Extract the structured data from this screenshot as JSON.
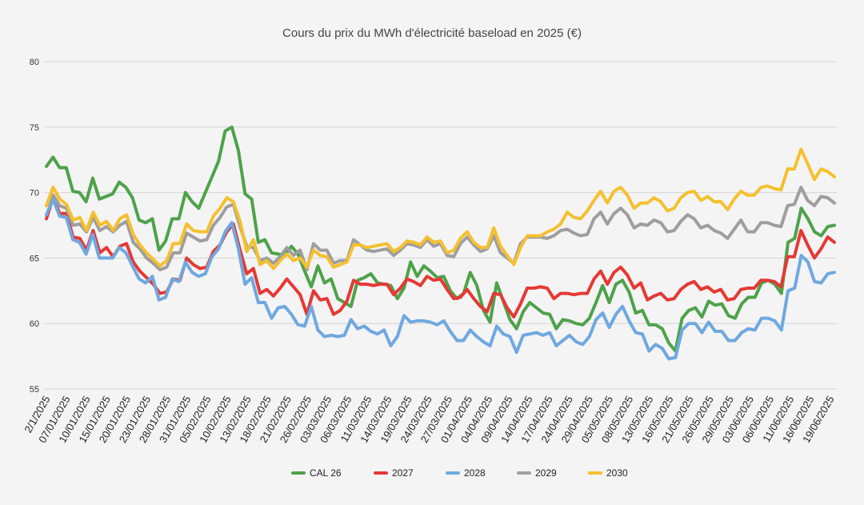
{
  "chart_data": {
    "type": "line",
    "title": "Cours du prix du MWh d'électricité baseload en 2025 (€)",
    "xlabel": "",
    "ylabel": "",
    "ylim": [
      55,
      80
    ],
    "yticks": [
      55,
      60,
      65,
      70,
      75,
      80
    ],
    "grid": true,
    "legend_position": "bottom",
    "x_tick_labels": [
      "2/1/2025",
      "07/01/2025",
      "10/01/2025",
      "15/01/2025",
      "20/01/2025",
      "23/01/2025",
      "28/01/2025",
      "31/01/2025",
      "05/02/2025",
      "10/02/2025",
      "13/02/2025",
      "18/02/2025",
      "21/02/2025",
      "26/02/2025",
      "03/03/2025",
      "06/03/2025",
      "11/03/2025",
      "14/03/2025",
      "19/03/2025",
      "24/03/2025",
      "27/03/2025",
      "01/04/2025",
      "04/04/2025",
      "09/04/2025",
      "14/04/2025",
      "17/04/2025",
      "24/04/2025",
      "29/04/2025",
      "05/05/2025",
      "08/05/2025",
      "13/05/2025",
      "16/05/2025",
      "21/05/2025",
      "26/05/2025",
      "29/05/2025",
      "03/06/2025",
      "06/06/2025",
      "11/06/2025",
      "16/06/2025",
      "19/06/2025"
    ],
    "series": [
      {
        "name": "CAL 26",
        "color": "#4ea24a",
        "values": [
          72.0,
          72.7,
          71.9,
          71.9,
          70.1,
          70.0,
          69.3,
          71.1,
          69.5,
          69.7,
          69.9,
          70.8,
          70.4,
          69.6,
          67.9,
          67.7,
          68.0,
          65.6,
          66.3,
          68.0,
          68.0,
          70.0,
          69.3,
          68.8,
          70.0,
          71.2,
          72.4,
          74.7,
          75.0,
          73.2,
          69.9,
          69.5,
          66.2,
          66.4,
          65.4,
          65.3,
          65.2,
          65.9,
          65.3,
          64.0,
          62.8,
          64.4,
          63.1,
          63.4,
          61.9,
          61.6,
          61.3,
          63.3,
          63.5,
          63.8,
          63.1,
          63.0,
          62.9,
          61.9,
          62.7,
          64.7,
          63.6,
          64.4,
          64.0,
          63.5,
          63.6,
          62.5,
          61.9,
          62.3,
          63.9,
          62.9,
          61.0,
          60.1,
          63.1,
          61.7,
          60.3,
          59.6,
          60.9,
          61.6,
          61.2,
          60.8,
          60.7,
          59.6,
          60.3,
          60.2,
          60.0,
          59.9,
          60.4,
          61.6,
          62.9,
          61.6,
          63.0,
          63.3,
          62.4,
          60.8,
          61.0,
          59.9,
          59.9,
          59.6,
          58.5,
          57.9,
          60.4,
          61.0,
          61.2,
          60.5,
          61.7,
          61.4,
          61.5,
          60.6,
          60.4,
          61.5,
          62.0,
          62.0,
          63.1,
          63.3,
          63.0,
          62.3,
          66.2,
          66.5,
          68.8,
          68.0,
          67.0,
          66.7,
          67.4,
          67.5
        ]
      },
      {
        "name": "2027",
        "color": "#e53935",
        "values": [
          68.0,
          69.6,
          68.4,
          68.4,
          66.6,
          66.5,
          65.6,
          67.1,
          65.4,
          65.8,
          65.1,
          65.9,
          66.1,
          64.7,
          64.0,
          63.5,
          63.0,
          62.3,
          62.4,
          63.4,
          63.3,
          65.0,
          64.5,
          64.2,
          64.3,
          65.5,
          66.0,
          67.0,
          67.6,
          65.6,
          63.8,
          64.2,
          62.3,
          62.6,
          62.1,
          62.7,
          63.4,
          62.8,
          62.2,
          60.7,
          62.5,
          61.8,
          61.9,
          60.7,
          61.0,
          61.7,
          63.3,
          63.0,
          63.0,
          62.9,
          63.0,
          63.0,
          62.2,
          62.7,
          63.4,
          63.2,
          62.9,
          63.6,
          63.3,
          63.4,
          62.6,
          61.9,
          62.0,
          62.6,
          61.9,
          61.3,
          60.9,
          62.3,
          62.2,
          61.2,
          60.5,
          61.5,
          62.7,
          62.7,
          62.8,
          62.7,
          61.9,
          62.3,
          62.3,
          62.2,
          62.3,
          62.3,
          63.4,
          64.0,
          63.0,
          63.9,
          64.3,
          63.7,
          62.7,
          63.1,
          61.8,
          62.1,
          62.3,
          61.8,
          61.9,
          62.6,
          63.0,
          63.2,
          62.6,
          62.8,
          62.4,
          62.6,
          61.8,
          61.9,
          62.6,
          62.7,
          62.7,
          63.3,
          63.3,
          63.2,
          62.8,
          65.1,
          65.1,
          67.1,
          66.0,
          65.0,
          65.7,
          66.6,
          66.2
        ]
      },
      {
        "name": "2028",
        "color": "#6fa8e0",
        "values": [
          68.3,
          69.5,
          68.2,
          68.1,
          66.4,
          66.2,
          65.3,
          66.8,
          65.0,
          65.0,
          65.0,
          65.8,
          65.4,
          64.4,
          63.4,
          63.1,
          63.6,
          61.8,
          62.0,
          63.4,
          63.2,
          64.7,
          63.9,
          63.6,
          63.8,
          65.1,
          65.7,
          67.0,
          67.7,
          65.7,
          63.0,
          63.5,
          61.6,
          61.6,
          60.4,
          61.2,
          61.3,
          60.7,
          59.9,
          59.8,
          61.3,
          59.5,
          59.0,
          59.1,
          59.0,
          59.1,
          60.3,
          59.6,
          59.8,
          59.4,
          59.2,
          59.5,
          58.3,
          59.0,
          60.6,
          60.1,
          60.2,
          60.2,
          60.1,
          59.9,
          60.2,
          59.4,
          58.7,
          58.7,
          59.5,
          59.0,
          58.6,
          58.3,
          59.8,
          59.2,
          59.0,
          57.8,
          59.1,
          59.2,
          59.3,
          59.1,
          59.3,
          58.3,
          58.7,
          59.1,
          58.6,
          58.4,
          59.0,
          60.3,
          60.8,
          59.7,
          60.7,
          61.3,
          60.2,
          59.3,
          59.2,
          57.9,
          58.4,
          58.1,
          57.3,
          57.4,
          59.5,
          60.0,
          60.0,
          59.3,
          60.1,
          59.4,
          59.4,
          58.7,
          58.7,
          59.3,
          59.6,
          59.5,
          60.4,
          60.4,
          60.2,
          59.5,
          62.5,
          62.7,
          65.2,
          64.7,
          63.2,
          63.1,
          63.8,
          63.9
        ]
      },
      {
        "name": "2029",
        "color": "#9e9e9e",
        "values": [
          69.0,
          69.8,
          69.0,
          68.8,
          67.5,
          67.6,
          67.0,
          68.1,
          67.1,
          67.4,
          67.0,
          67.5,
          67.8,
          66.2,
          65.7,
          65.0,
          64.6,
          64.1,
          64.3,
          65.4,
          65.4,
          66.9,
          66.6,
          66.3,
          66.4,
          67.5,
          68.1,
          68.9,
          69.1,
          67.4,
          65.9,
          65.8,
          64.8,
          65.0,
          64.6,
          65.1,
          65.8,
          65.2,
          65.6,
          64.1,
          66.1,
          65.6,
          65.6,
          64.6,
          64.8,
          64.8,
          66.4,
          66.0,
          65.6,
          65.5,
          65.6,
          65.7,
          65.2,
          65.6,
          66.1,
          66.0,
          65.8,
          66.4,
          65.9,
          66.1,
          65.2,
          65.1,
          66.1,
          66.6,
          66.0,
          65.5,
          65.7,
          66.7,
          65.4,
          65.0,
          64.6,
          66.1,
          66.6,
          66.6,
          66.6,
          66.5,
          66.7,
          67.1,
          67.2,
          66.9,
          66.7,
          66.8,
          68.0,
          68.5,
          67.6,
          68.4,
          68.8,
          68.3,
          67.3,
          67.6,
          67.5,
          67.9,
          67.7,
          67.0,
          67.1,
          67.8,
          68.3,
          68.0,
          67.3,
          67.5,
          67.1,
          66.9,
          66.5,
          67.2,
          67.9,
          67.0,
          67.0,
          67.7,
          67.7,
          67.5,
          67.4,
          69.0,
          69.1,
          70.4,
          69.4,
          69.0,
          69.7,
          69.6,
          69.2
        ]
      },
      {
        "name": "2030",
        "color": "#f5c02f",
        "values": [
          69.0,
          70.4,
          69.5,
          69.1,
          67.9,
          68.1,
          67.1,
          68.5,
          67.5,
          67.8,
          67.1,
          68.0,
          68.3,
          66.8,
          66.0,
          65.4,
          64.9,
          64.4,
          64.8,
          66.1,
          66.1,
          67.6,
          67.1,
          67.0,
          67.0,
          68.2,
          68.8,
          69.6,
          69.3,
          67.8,
          65.5,
          66.4,
          64.5,
          64.8,
          64.2,
          64.8,
          65.3,
          64.8,
          65.0,
          64.3,
          65.6,
          65.2,
          65.1,
          64.3,
          64.5,
          64.7,
          66.0,
          66.0,
          65.8,
          65.9,
          66.0,
          66.1,
          65.5,
          65.8,
          66.3,
          66.2,
          66.0,
          66.6,
          66.2,
          66.3,
          65.4,
          65.6,
          66.5,
          67.0,
          66.2,
          65.8,
          65.8,
          67.3,
          65.9,
          65.2,
          64.5,
          65.8,
          66.7,
          66.7,
          66.7,
          67.0,
          67.2,
          67.6,
          68.5,
          68.1,
          68.0,
          68.6,
          69.4,
          70.1,
          69.2,
          70.1,
          70.4,
          69.8,
          68.8,
          69.2,
          69.2,
          69.6,
          69.3,
          68.6,
          68.8,
          69.6,
          70.0,
          70.1,
          69.4,
          69.7,
          69.3,
          69.3,
          68.7,
          69.5,
          70.1,
          69.8,
          69.8,
          70.4,
          70.5,
          70.3,
          70.2,
          71.8,
          71.8,
          73.3,
          72.2,
          71.0,
          71.8,
          71.6,
          71.2
        ]
      }
    ]
  }
}
